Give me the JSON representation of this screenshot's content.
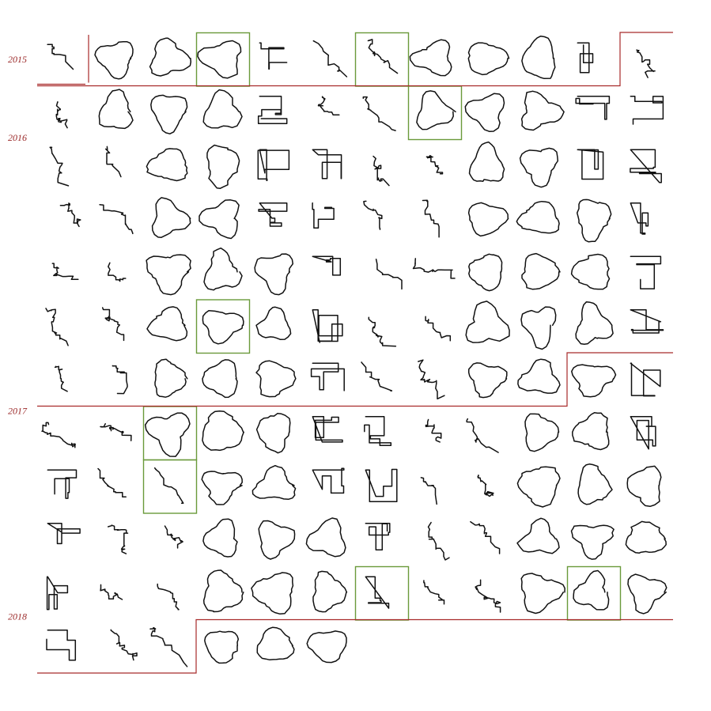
{
  "years": [
    {
      "label": "2015",
      "first_index": 0
    },
    {
      "label": "2016",
      "first_index": 11
    },
    {
      "label": "2017",
      "first_index": 82
    },
    {
      "label": "2018",
      "first_index": 135
    }
  ],
  "route_count": 138,
  "highlighted": [
    3,
    6,
    19,
    63,
    86,
    98,
    126,
    130
  ],
  "colors": {
    "route": "#111111",
    "highlight_border": "#6a9a3a",
    "year_separator": "#a82a2a",
    "year_label": "#9b2a2a",
    "background": "#ffffff"
  }
}
